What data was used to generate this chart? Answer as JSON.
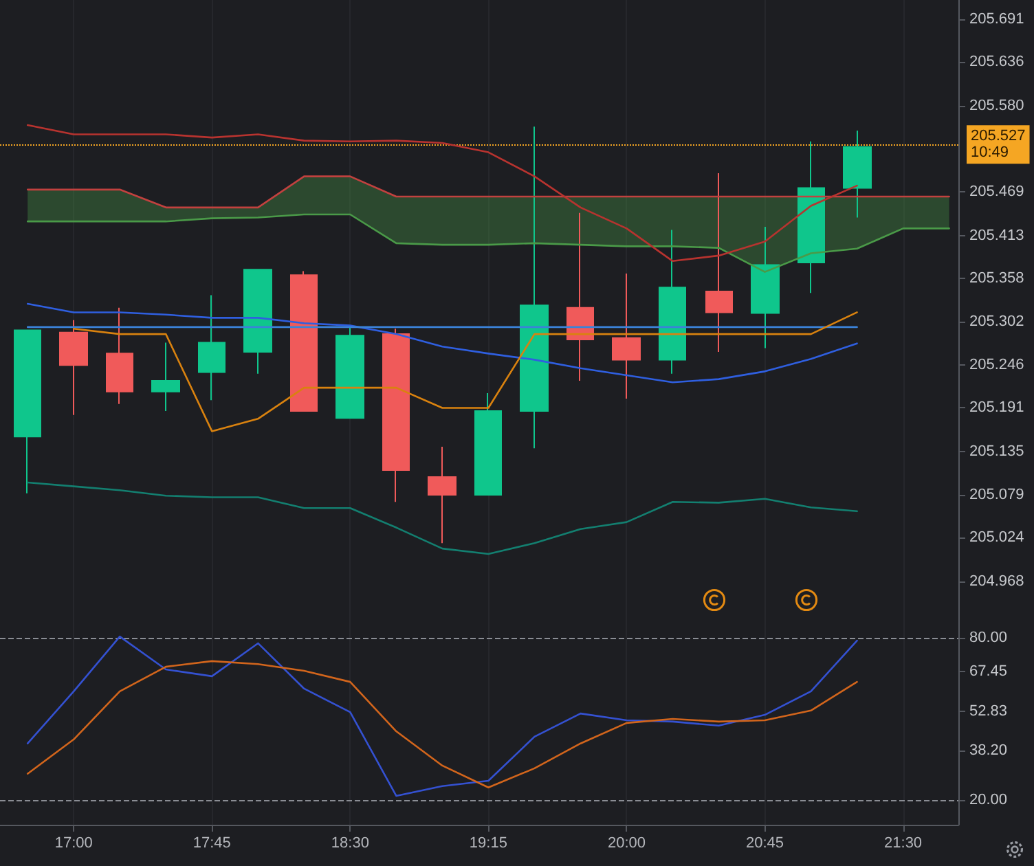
{
  "chart_data": [
    {
      "type": "candlestick",
      "x": [
        16.75,
        17,
        17.25,
        17.5,
        17.75,
        18,
        18.25,
        18.5,
        18.75,
        19,
        19.25,
        19.5,
        19.75,
        20,
        20.25,
        20.5,
        20.75,
        21,
        21.25
      ],
      "ohlc": [
        [
          205.154,
          205.291,
          205.081,
          205.291
        ],
        [
          205.288,
          205.304,
          205.182,
          205.246
        ],
        [
          205.261,
          205.32,
          205.196,
          205.212
        ],
        [
          205.212,
          205.275,
          205.187,
          205.226
        ],
        [
          205.237,
          205.336,
          205.201,
          205.275
        ],
        [
          205.263,
          205.369,
          205.235,
          205.369
        ],
        [
          205.362,
          205.367,
          205.187,
          205.187
        ],
        [
          205.178,
          205.297,
          205.178,
          205.284
        ],
        [
          205.286,
          205.293,
          205.07,
          205.111
        ],
        [
          205.102,
          205.141,
          205.017,
          205.079
        ],
        [
          205.079,
          205.21,
          205.079,
          205.187
        ],
        [
          205.187,
          205.553,
          205.139,
          205.323
        ],
        [
          205.32,
          205.442,
          205.226,
          205.279
        ],
        [
          205.281,
          205.364,
          205.203,
          205.253
        ],
        [
          205.253,
          205.42,
          205.235,
          205.346
        ],
        [
          205.341,
          205.493,
          205.263,
          205.314
        ],
        [
          205.313,
          205.424,
          205.268,
          205.375
        ],
        [
          205.378,
          205.534,
          205.339,
          205.474
        ],
        [
          205.474,
          205.548,
          205.436,
          205.527
        ]
      ],
      "colors": [
        "#0fc68c",
        "#f05a5a",
        "#f05a5a",
        "#0fc68c",
        "#0fc68c",
        "#0fc68c",
        "#f05a5a",
        "#0fc68c",
        "#f05a5a",
        "#f05a5a",
        "#0fc68c",
        "#0fc68c",
        "#f05a5a",
        "#f05a5a",
        "#0fc68c",
        "#f05a5a",
        "#0fc68c",
        "#0fc68c",
        "#0fc68c"
      ],
      "series": [
        {
          "type": "line",
          "color": "#c2413f",
          "x": [
            16.75,
            17,
            17.25,
            17.5,
            17.75,
            18,
            18.25,
            18.5,
            18.75,
            19,
            19.25,
            19.5,
            19.75,
            20,
            20.25,
            20.5,
            20.75,
            21,
            21.25,
            21.5,
            21.75
          ],
          "values": [
            205.472,
            205.472,
            205.472,
            205.449,
            205.449,
            205.449,
            205.489,
            205.489,
            205.463,
            205.463,
            205.463,
            205.463,
            205.463,
            205.463,
            205.463,
            205.463,
            205.463,
            205.463,
            205.463,
            205.463,
            205.463
          ]
        },
        {
          "type": "line",
          "color": "#4a9a48",
          "x": [
            16.75,
            17,
            17.25,
            17.5,
            17.75,
            18,
            18.25,
            18.5,
            18.75,
            19,
            19.25,
            19.5,
            19.75,
            20,
            20.25,
            20.5,
            20.75,
            21,
            21.25,
            21.5,
            21.75
          ],
          "values": [
            205.431,
            205.431,
            205.431,
            205.431,
            205.435,
            205.436,
            205.44,
            205.44,
            205.403,
            205.401,
            205.401,
            205.403,
            205.401,
            205.399,
            205.399,
            205.397,
            205.366,
            205.39,
            205.396,
            205.422,
            205.422
          ],
          "lower": [
            205.431,
            205.431,
            205.431,
            205.431,
            205.435,
            205.436,
            205.44,
            205.44,
            205.403,
            205.401,
            205.401,
            205.403,
            205.401,
            205.399,
            205.399,
            205.397,
            205.366,
            205.39,
            205.396,
            205.422,
            205.422
          ],
          "upper": [
            205.472,
            205.472,
            205.472,
            205.449,
            205.449,
            205.449,
            205.489,
            205.489,
            205.463,
            205.463,
            205.463,
            205.463,
            205.463,
            205.463,
            205.463,
            205.463,
            205.463,
            205.463,
            205.463,
            205.463,
            205.463
          ]
        },
        {
          "type": "line",
          "color": "#b8332f",
          "values": [
            205.555,
            205.543,
            205.543,
            205.543,
            205.539,
            205.543,
            205.535,
            205.534,
            205.535,
            205.532,
            205.52,
            205.489,
            205.449,
            205.422,
            205.38,
            205.387,
            205.405,
            205.451,
            205.477
          ]
        },
        {
          "type": "line",
          "color": "#2f5fe0",
          "values": [
            205.325,
            205.314,
            205.314,
            205.311,
            205.307,
            205.307,
            205.3,
            205.297,
            205.286,
            205.27,
            205.261,
            205.253,
            205.242,
            205.233,
            205.224,
            205.228,
            205.238,
            205.254,
            205.274
          ]
        },
        {
          "type": "line",
          "color": "#3b82d8",
          "values": [
            205.295,
            205.295,
            205.295,
            205.295,
            205.295,
            205.295,
            205.295,
            205.295,
            205.295,
            205.295,
            205.295,
            205.295,
            205.295,
            205.295,
            205.295,
            205.295,
            205.295,
            205.295,
            205.295
          ]
        },
        {
          "type": "line",
          "color": "#d9820f",
          "values": [
            null,
            205.293,
            205.286,
            205.286,
            205.161,
            205.177,
            205.217,
            205.217,
            205.217,
            205.191,
            205.191,
            205.286,
            205.286,
            205.286,
            205.286,
            205.286,
            205.286,
            205.286,
            205.314
          ]
        },
        {
          "type": "line",
          "color": "#137f70",
          "values": [
            205.095,
            205.09,
            205.085,
            205.078,
            205.076,
            205.076,
            205.062,
            205.062,
            205.037,
            205.01,
            205.003,
            205.017,
            205.035,
            205.044,
            205.07,
            205.069,
            205.074,
            205.063,
            205.058
          ]
        }
      ],
      "xlim": [
        16.6,
        21.8
      ],
      "xticks": [
        {
          "value": 17,
          "label": null
        },
        {
          "value": 17.75,
          "label": null
        },
        {
          "value": 18.5,
          "label": null
        },
        {
          "value": 19.25,
          "label": null
        },
        {
          "value": 20,
          "label": null
        },
        {
          "value": 20.75,
          "label": null
        },
        {
          "value": 21.5,
          "label": null
        }
      ],
      "ylim": [
        204.911,
        205.716
      ],
      "yticks": [
        {
          "value": 204.968,
          "label": "204.968"
        },
        {
          "value": 205.024,
          "label": "205.024"
        },
        {
          "value": 205.079,
          "label": "205.079"
        },
        {
          "value": 205.135,
          "label": "205.135"
        },
        {
          "value": 205.191,
          "label": "205.191"
        },
        {
          "value": 205.246,
          "label": "205.246"
        },
        {
          "value": 205.302,
          "label": "205.302"
        },
        {
          "value": 205.358,
          "label": "205.358"
        },
        {
          "value": 205.413,
          "label": "205.413"
        },
        {
          "value": 205.469,
          "label": "205.469"
        },
        {
          "value": 205.58,
          "label": "205.580"
        },
        {
          "value": 205.636,
          "label": "205.636"
        },
        {
          "value": 205.691,
          "label": "205.691"
        }
      ],
      "ref_lines": [
        {
          "axis": "y",
          "value": 205.527,
          "label": "205.527\n10:49",
          "color": "#f5a623",
          "line_style": "dotted"
        }
      ],
      "grid": "x",
      "tick_labels": "y"
    },
    {
      "type": "line",
      "x": [
        16.75,
        17,
        17.25,
        17.5,
        17.75,
        18,
        18.25,
        18.5,
        18.75,
        19,
        19.25,
        19.5,
        19.75,
        20,
        20.25,
        20.5,
        20.75,
        21,
        21.25
      ],
      "series": [
        {
          "color": "#3451d1",
          "values": [
            40.9,
            60.2,
            80.5,
            68.3,
            65.8,
            78.0,
            61.2,
            52.5,
            21.5,
            25.1,
            27.1,
            43.4,
            52.0,
            49.5,
            49.0,
            47.5,
            51.5,
            60.2,
            79.0
          ]
        },
        {
          "color": "#d2651c",
          "values": [
            29.7,
            42.4,
            60.2,
            69.3,
            71.4,
            70.3,
            67.8,
            63.7,
            45.4,
            32.7,
            24.6,
            31.7,
            40.9,
            48.5,
            50.0,
            49.0,
            49.5,
            53.1,
            63.7
          ]
        }
      ],
      "xlim": [
        16.6,
        21.8
      ],
      "xticks": [
        {
          "value": 17,
          "label": "17:00"
        },
        {
          "value": 17.75,
          "label": "17:45"
        },
        {
          "value": 18.5,
          "label": "18:30"
        },
        {
          "value": 19.25,
          "label": "19:15"
        },
        {
          "value": 20,
          "label": "20:00"
        },
        {
          "value": 20.75,
          "label": "20:45"
        },
        {
          "value": 21.5,
          "label": "21:30"
        }
      ],
      "ylim": [
        10.8,
        84.6
      ],
      "yticks": [
        {
          "value": 20,
          "label": "20.00"
        },
        {
          "value": 38.2,
          "label": "38.20"
        },
        {
          "value": 52.83,
          "label": "52.83"
        },
        {
          "value": 67.45,
          "label": "67.45"
        },
        {
          "value": 80,
          "label": "80.00"
        }
      ],
      "ref_lines": [
        {
          "axis": "y",
          "value": 80,
          "color": "#8a8d94",
          "line_style": "dashed"
        },
        {
          "axis": "y",
          "value": 20,
          "color": "#8a8d94",
          "line_style": "dashed"
        }
      ],
      "grid": "x"
    }
  ]
}
